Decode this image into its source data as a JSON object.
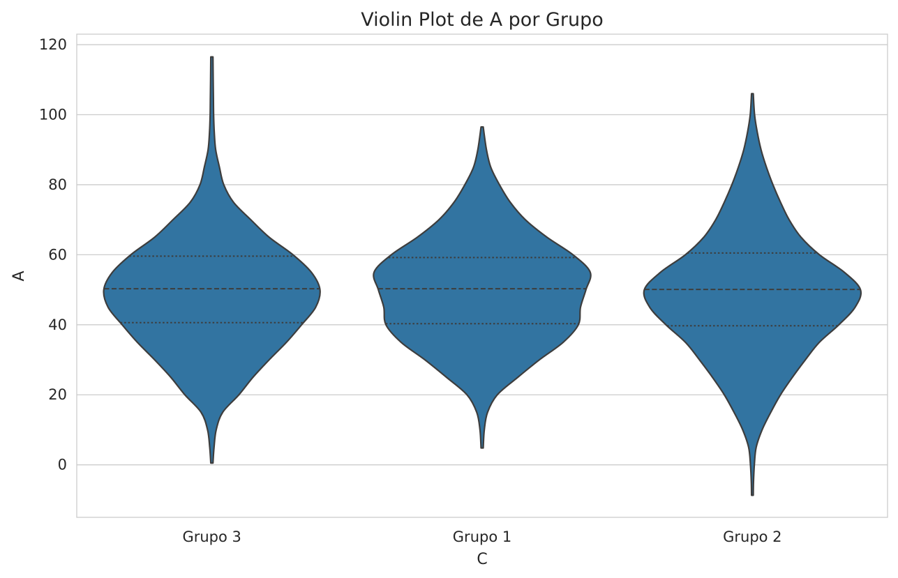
{
  "chart_data": {
    "type": "violin",
    "title": "Violin Plot de A por Grupo",
    "xlabel": "C",
    "ylabel": "A",
    "categories": [
      "Grupo 3",
      "Grupo 1",
      "Grupo 2"
    ],
    "ylim": [
      -15,
      123
    ],
    "yticks": [
      0,
      20,
      40,
      60,
      80,
      100,
      120
    ],
    "grid": true,
    "legend": "none",
    "colors": {
      "fill": "#3274a1",
      "edge": "#3d3d3d",
      "grid": "#cccccc",
      "text": "#262626"
    },
    "series": [
      {
        "category": "Grupo 3",
        "min": 0.5,
        "max": 116.5,
        "q1": 40.6,
        "median": 50.3,
        "q3": 59.6,
        "density": [
          [
            0.5,
            0.01
          ],
          [
            5,
            0.02
          ],
          [
            10,
            0.04
          ],
          [
            15,
            0.1
          ],
          [
            20,
            0.25
          ],
          [
            25,
            0.38
          ],
          [
            30,
            0.53
          ],
          [
            35,
            0.69
          ],
          [
            40,
            0.83
          ],
          [
            45,
            0.96
          ],
          [
            50,
            1.0
          ],
          [
            55,
            0.92
          ],
          [
            60,
            0.75
          ],
          [
            65,
            0.53
          ],
          [
            70,
            0.36
          ],
          [
            75,
            0.2
          ],
          [
            80,
            0.11
          ],
          [
            85,
            0.07
          ],
          [
            90,
            0.035
          ],
          [
            95,
            0.022
          ],
          [
            100,
            0.016
          ],
          [
            105,
            0.014
          ],
          [
            110,
            0.012
          ],
          [
            116.5,
            0.01
          ]
        ]
      },
      {
        "category": "Grupo 1",
        "min": 4.8,
        "max": 96.5,
        "q1": 40.3,
        "median": 50.3,
        "q3": 59.2,
        "density": [
          [
            4.8,
            0.01
          ],
          [
            10,
            0.02
          ],
          [
            15,
            0.05
          ],
          [
            20,
            0.14
          ],
          [
            25,
            0.33
          ],
          [
            30,
            0.53
          ],
          [
            35,
            0.75
          ],
          [
            40,
            0.89
          ],
          [
            45,
            0.91
          ],
          [
            50,
            0.96
          ],
          [
            55,
            1.0
          ],
          [
            60,
            0.84
          ],
          [
            65,
            0.6
          ],
          [
            70,
            0.4
          ],
          [
            75,
            0.26
          ],
          [
            80,
            0.16
          ],
          [
            85,
            0.08
          ],
          [
            90,
            0.04
          ],
          [
            96.5,
            0.01
          ]
        ]
      },
      {
        "category": "Grupo 2",
        "min": -8.7,
        "max": 106.0,
        "q1": 39.7,
        "median": 50.1,
        "q3": 60.5,
        "density": [
          [
            -8.7,
            0.008
          ],
          [
            -5,
            0.01
          ],
          [
            0,
            0.018
          ],
          [
            5,
            0.035
          ],
          [
            10,
            0.09
          ],
          [
            15,
            0.17
          ],
          [
            20,
            0.26
          ],
          [
            25,
            0.37
          ],
          [
            30,
            0.49
          ],
          [
            35,
            0.62
          ],
          [
            40,
            0.8
          ],
          [
            45,
            0.95
          ],
          [
            50,
            1.0
          ],
          [
            55,
            0.85
          ],
          [
            60,
            0.62
          ],
          [
            65,
            0.45
          ],
          [
            70,
            0.34
          ],
          [
            75,
            0.26
          ],
          [
            80,
            0.19
          ],
          [
            85,
            0.13
          ],
          [
            90,
            0.08
          ],
          [
            95,
            0.045
          ],
          [
            100,
            0.02
          ],
          [
            106,
            0.008
          ]
        ]
      }
    ]
  }
}
